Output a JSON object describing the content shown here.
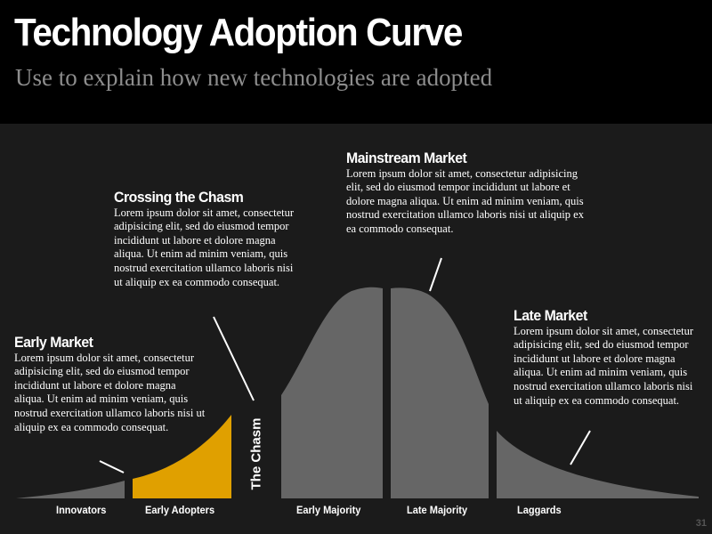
{
  "title": "Technology Adoption Curve",
  "subtitle": "Use to explain how new technologies are adopted",
  "callouts": {
    "early_market": {
      "heading": "Early Market",
      "body": "Lorem ipsum dolor sit amet, consectetur adipisicing elit, sed do eiusmod tempor incididunt ut labore et dolore magna aliqua. Ut enim ad minim veniam, quis nostrud exercitation ullamco laboris nisi ut aliquip ex ea commodo consequat."
    },
    "crossing_chasm": {
      "heading": "Crossing the Chasm",
      "body": "Lorem ipsum dolor sit amet, consectetur adipisicing elit, sed do eiusmod tempor incididunt ut labore et dolore magna aliqua. Ut enim ad minim veniam, quis nostrud exercitation ullamco laboris nisi ut aliquip ex ea commodo consequat."
    },
    "mainstream_market": {
      "heading": "Mainstream Market",
      "body": "Lorem ipsum dolor sit amet, consectetur adipisicing elit, sed do eiusmod tempor incididunt ut labore et dolore magna aliqua. Ut enim ad minim veniam, quis nostrud exercitation ullamco laboris nisi ut aliquip ex ea commodo consequat."
    },
    "late_market": {
      "heading": "Late Market",
      "body": "Lorem ipsum dolor sit amet, consectetur adipisicing elit, sed do eiusmod tempor incididunt ut labore et dolore magna aliqua. Ut enim ad minim veniam, quis nostrud exercitation ullamco laboris nisi ut aliquip ex ea commodo consequat."
    }
  },
  "segments": {
    "innovators": "Innovators",
    "early_adopters": "Early Adopters",
    "early_majority": "Early Majority",
    "late_majority": "Late Majority",
    "laggards": "Laggards"
  },
  "chasm_label": "The Chasm",
  "page_number": "31",
  "colors": {
    "header_bg": "#000000",
    "body_bg": "#1b1b1b",
    "curve_gray": "#666666",
    "highlight_orange": "#e0a000",
    "text": "#ffffff",
    "subtitle": "#8d8d8d"
  }
}
